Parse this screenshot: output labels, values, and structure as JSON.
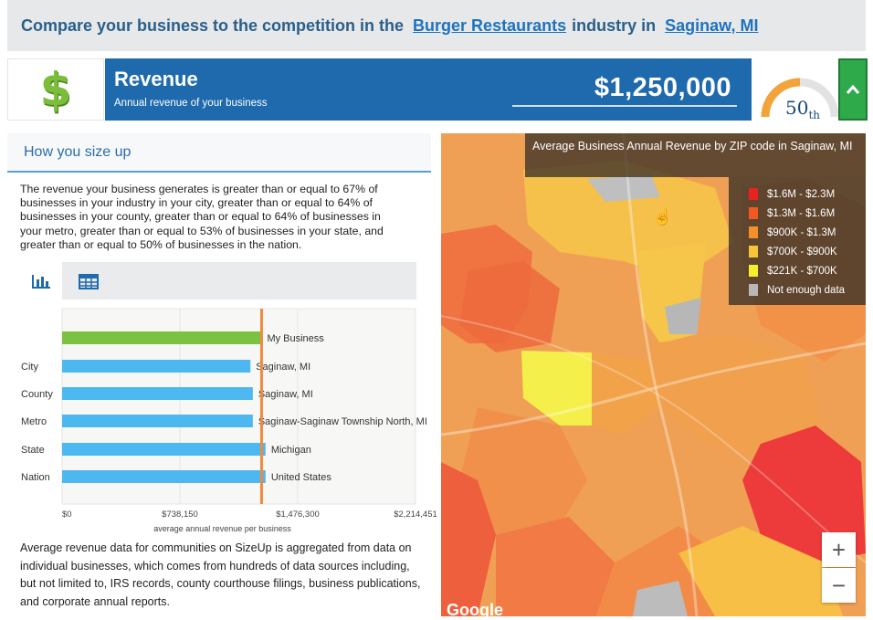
{
  "header": {
    "prefix": "Compare your business to the competition in the",
    "industry": "Burger Restaurants",
    "middle": "industry in",
    "location": "Saginaw, MI"
  },
  "revenue": {
    "icon": "dollar-icon",
    "title": "Revenue",
    "subtitle": "Annual revenue of your business",
    "value": "$1,250,000",
    "percentile_number": "50",
    "percentile_suffix": "th",
    "percentile_fraction": 0.5,
    "collapse_icon": "chevron-up-icon"
  },
  "sizeup": {
    "title": "How you size up",
    "summary": "The revenue your business generates is greater than or equal to 67% of businesses in your industry in your city, greater than or equal to 64% of businesses in your county, greater than or equal to 64% of businesses in your metro, greater than or equal to 53% of businesses in your state, and greater than or equal to 50% of businesses in the nation.",
    "tabs": [
      {
        "icon": "bar-chart-icon",
        "active": true
      },
      {
        "icon": "table-icon",
        "active": false
      }
    ],
    "footnote": "Average revenue data for communities on SizeUp is aggregated from data on individual businesses, which comes from hundreds of data sources including, but not limited to, IRS records, county courthouse filings, business publications, and corporate annual reports."
  },
  "chart_data": {
    "type": "bar",
    "orientation": "horizontal",
    "categories": [
      "",
      "City",
      "County",
      "Metro",
      "State",
      "Nation"
    ],
    "bar_labels": [
      "My Business",
      "Saginaw, MI",
      "Saginaw, MI",
      "Saginaw-Saginaw Township North, MI",
      "Michigan",
      "United States"
    ],
    "values": [
      1250000,
      1180000,
      1195000,
      1195000,
      1275000,
      1275000
    ],
    "bar_colors": [
      "#7cc242",
      "#4db8f0",
      "#4db8f0",
      "#4db8f0",
      "#4db8f0",
      "#4db8f0"
    ],
    "reference_line": {
      "value": 1250000,
      "color": "#f08a3c"
    },
    "xlim": [
      0,
      2214451
    ],
    "xticks": [
      0,
      738150,
      1476300,
      2214451
    ],
    "xtick_labels": [
      "$0",
      "$738,150",
      "$1,476,300",
      "$2,214,451"
    ],
    "xlabel": "average annual revenue per business",
    "ylabel": "",
    "title": ""
  },
  "map": {
    "title": "Average Business Annual Revenue by ZIP code in Saginaw, MI",
    "legend": [
      {
        "label": "$1.6M - $2.3M",
        "color": "#e8231e"
      },
      {
        "label": "$1.3M - $1.6M",
        "color": "#f05a22"
      },
      {
        "label": "$900K - $1.3M",
        "color": "#f4902c"
      },
      {
        "label": "$700K - $900K",
        "color": "#f7c43a"
      },
      {
        "label": "$221K - $700K",
        "color": "#f6ef2e"
      },
      {
        "label": "Not enough data",
        "color": "#b8b8b8"
      }
    ],
    "zoom_in": "+",
    "zoom_out": "−",
    "attribution": "Google",
    "cursor_glyph": "☝"
  }
}
